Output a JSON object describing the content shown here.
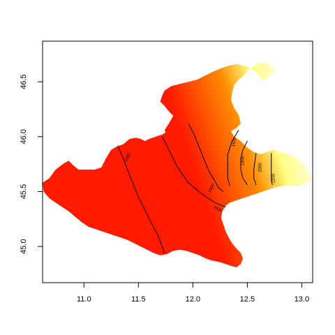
{
  "chart_data": {
    "type": "heatmap",
    "title": "",
    "xlabel": "",
    "ylabel": "",
    "xlim": [
      10.62,
      13.1
    ],
    "ylim": [
      44.67,
      46.87
    ],
    "x_ticks": [
      {
        "value": 11.0,
        "label": "11.0"
      },
      {
        "value": 11.5,
        "label": "11.5"
      },
      {
        "value": 12.0,
        "label": "12.0"
      },
      {
        "value": 12.5,
        "label": "12.5"
      },
      {
        "value": 13.0,
        "label": "13.0"
      }
    ],
    "y_ticks": [
      {
        "value": 45.0,
        "label": "45.0"
      },
      {
        "value": 45.5,
        "label": "45.5"
      },
      {
        "value": 46.0,
        "label": "46.0"
      },
      {
        "value": 46.5,
        "label": "46.5"
      }
    ],
    "color_scale": {
      "low": "#ff1a00",
      "mid": "#ff8c00",
      "high": "#ffff80",
      "top": "#ffffe0"
    },
    "region_outline": [
      [
        10.62,
        45.58
      ],
      [
        10.68,
        45.62
      ],
      [
        10.74,
        45.7
      ],
      [
        10.82,
        45.76
      ],
      [
        10.86,
        45.78
      ],
      [
        10.9,
        45.74
      ],
      [
        10.95,
        45.7
      ],
      [
        11.02,
        45.7
      ],
      [
        11.1,
        45.7
      ],
      [
        11.16,
        45.72
      ],
      [
        11.2,
        45.8
      ],
      [
        11.25,
        45.88
      ],
      [
        11.3,
        45.91
      ],
      [
        11.36,
        45.93
      ],
      [
        11.42,
        45.98
      ],
      [
        11.48,
        45.99
      ],
      [
        11.52,
        45.98
      ],
      [
        11.56,
        45.96
      ],
      [
        11.6,
        45.98
      ],
      [
        11.66,
        46.0
      ],
      [
        11.72,
        46.02
      ],
      [
        11.78,
        46.06
      ],
      [
        11.84,
        46.09
      ],
      [
        11.9,
        46.11
      ],
      [
        11.93,
        46.1
      ],
      [
        11.96,
        46.11
      ],
      [
        11.99,
        46.14
      ],
      [
        12.02,
        46.15
      ],
      [
        12.06,
        46.15
      ],
      [
        12.1,
        46.14
      ],
      [
        12.12,
        46.1
      ],
      [
        12.09,
        46.06
      ],
      [
        12.07,
        46.04
      ],
      [
        12.08,
        46.01
      ],
      [
        12.06,
        45.98
      ],
      [
        12.03,
        45.95
      ],
      [
        12.0,
        45.96
      ],
      [
        11.95,
        45.97
      ],
      [
        11.9,
        45.99
      ],
      [
        11.86,
        45.98
      ],
      [
        11.8,
        46.0
      ],
      [
        11.76,
        46.02
      ],
      [
        11.74,
        46.06
      ],
      [
        11.78,
        46.12
      ],
      [
        11.82,
        46.19
      ],
      [
        11.78,
        46.23
      ],
      [
        11.74,
        46.28
      ],
      [
        11.7,
        46.32
      ],
      [
        11.72,
        46.38
      ],
      [
        11.74,
        46.42
      ],
      [
        11.8,
        46.46
      ],
      [
        11.88,
        46.48
      ],
      [
        11.96,
        46.5
      ],
      [
        12.04,
        46.52
      ],
      [
        12.12,
        46.56
      ],
      [
        12.2,
        46.6
      ],
      [
        12.28,
        46.63
      ],
      [
        12.34,
        46.65
      ],
      [
        12.4,
        46.66
      ],
      [
        12.46,
        46.65
      ],
      [
        12.52,
        46.63
      ],
      [
        12.56,
        46.6
      ],
      [
        12.6,
        46.57
      ],
      [
        12.62,
        46.53
      ],
      [
        12.66,
        46.52
      ],
      [
        12.7,
        46.55
      ],
      [
        12.74,
        46.58
      ],
      [
        12.76,
        46.62
      ],
      [
        12.72,
        46.65
      ],
      [
        12.66,
        46.68
      ],
      [
        12.6,
        46.67
      ],
      [
        12.56,
        46.64
      ],
      [
        12.5,
        46.6
      ],
      [
        12.46,
        46.55
      ],
      [
        12.42,
        46.52
      ],
      [
        12.38,
        46.47
      ],
      [
        12.36,
        46.4
      ],
      [
        12.35,
        46.33
      ],
      [
        12.38,
        46.26
      ],
      [
        12.42,
        46.2
      ],
      [
        12.44,
        46.12
      ],
      [
        12.4,
        46.08
      ],
      [
        12.35,
        46.05
      ],
      [
        12.38,
        46.0
      ],
      [
        12.44,
        45.96
      ],
      [
        12.5,
        45.9
      ],
      [
        12.56,
        45.86
      ],
      [
        12.62,
        45.84
      ],
      [
        12.68,
        45.86
      ],
      [
        12.74,
        45.88
      ],
      [
        12.8,
        45.86
      ],
      [
        12.88,
        45.84
      ],
      [
        12.96,
        45.8
      ],
      [
        13.02,
        45.74
      ],
      [
        13.06,
        45.68
      ],
      [
        13.1,
        45.62
      ],
      [
        13.05,
        45.58
      ],
      [
        13.0,
        45.56
      ],
      [
        12.94,
        45.55
      ],
      [
        12.88,
        45.56
      ],
      [
        12.82,
        45.55
      ],
      [
        12.76,
        45.54
      ],
      [
        12.7,
        45.52
      ],
      [
        12.64,
        45.5
      ],
      [
        12.58,
        45.48
      ],
      [
        12.52,
        45.46
      ],
      [
        12.46,
        45.44
      ],
      [
        12.4,
        45.42
      ],
      [
        12.34,
        45.4
      ],
      [
        12.3,
        45.37
      ],
      [
        12.27,
        45.32
      ],
      [
        12.26,
        45.26
      ],
      [
        12.28,
        45.2
      ],
      [
        12.3,
        45.14
      ],
      [
        12.33,
        45.08
      ],
      [
        12.36,
        45.03
      ],
      [
        12.4,
        44.98
      ],
      [
        12.44,
        44.94
      ],
      [
        12.46,
        44.89
      ],
      [
        12.44,
        44.84
      ],
      [
        12.4,
        44.81
      ],
      [
        12.36,
        44.82
      ],
      [
        12.3,
        44.84
      ],
      [
        12.24,
        44.86
      ],
      [
        12.18,
        44.87
      ],
      [
        12.12,
        44.89
      ],
      [
        12.06,
        44.92
      ],
      [
        12.0,
        44.94
      ],
      [
        11.94,
        44.96
      ],
      [
        11.88,
        44.97
      ],
      [
        11.82,
        44.96
      ],
      [
        11.76,
        44.93
      ],
      [
        11.7,
        44.92
      ],
      [
        11.64,
        44.94
      ],
      [
        11.58,
        44.97
      ],
      [
        11.52,
        45.0
      ],
      [
        11.46,
        45.03
      ],
      [
        11.4,
        45.06
      ],
      [
        11.34,
        45.08
      ],
      [
        11.28,
        45.1
      ],
      [
        11.22,
        45.12
      ],
      [
        11.16,
        45.14
      ],
      [
        11.1,
        45.16
      ],
      [
        11.04,
        45.18
      ],
      [
        10.98,
        45.22
      ],
      [
        10.92,
        45.27
      ],
      [
        10.86,
        45.32
      ],
      [
        10.8,
        45.36
      ],
      [
        10.74,
        45.4
      ],
      [
        10.68,
        45.44
      ],
      [
        10.63,
        45.5
      ],
      [
        10.62,
        45.58
      ]
    ],
    "contours": [
      {
        "level": "1000",
        "points": [
          [
            11.31,
            45.92
          ],
          [
            11.36,
            45.8
          ],
          [
            11.42,
            45.65
          ],
          [
            11.5,
            45.45
          ],
          [
            11.6,
            45.25
          ],
          [
            11.68,
            45.1
          ],
          [
            11.74,
            44.94
          ]
        ]
      },
      {
        "level": "1500",
        "points": [
          [
            11.72,
            46.0
          ],
          [
            11.78,
            45.88
          ],
          [
            11.86,
            45.72
          ],
          [
            11.96,
            45.58
          ],
          [
            12.08,
            45.48
          ],
          [
            12.2,
            45.4
          ],
          [
            12.3,
            45.36
          ]
        ]
      },
      {
        "level": "1500",
        "points": [
          [
            11.96,
            46.12
          ],
          [
            12.02,
            46.0
          ],
          [
            12.06,
            45.9
          ],
          [
            12.1,
            45.8
          ],
          [
            12.15,
            45.68
          ],
          [
            12.2,
            45.6
          ],
          [
            12.24,
            45.53
          ],
          [
            12.28,
            45.5
          ]
        ]
      },
      {
        "level": "1500",
        "points": [
          [
            12.42,
            46.06
          ],
          [
            12.36,
            45.96
          ],
          [
            12.32,
            45.84
          ],
          [
            12.32,
            45.72
          ],
          [
            12.32,
            45.62
          ],
          [
            12.34,
            45.55
          ]
        ]
      },
      {
        "level": "1800",
        "points": [
          [
            12.5,
            45.96
          ],
          [
            12.46,
            45.88
          ],
          [
            12.44,
            45.8
          ],
          [
            12.44,
            45.7
          ],
          [
            12.46,
            45.62
          ],
          [
            12.5,
            45.56
          ]
        ]
      },
      {
        "level": "2000",
        "points": [
          [
            12.58,
            45.85
          ],
          [
            12.57,
            45.78
          ],
          [
            12.56,
            45.7
          ],
          [
            12.56,
            45.62
          ],
          [
            12.58,
            45.56
          ]
        ]
      },
      {
        "level": "2200",
        "points": [
          [
            12.72,
            45.85
          ],
          [
            12.72,
            45.76
          ],
          [
            12.72,
            45.68
          ],
          [
            12.72,
            45.6
          ],
          [
            12.73,
            45.56
          ]
        ]
      }
    ],
    "contour_labels": [
      {
        "text": "1000",
        "x": 11.4,
        "y": 45.81,
        "angle": -62
      },
      {
        "text": "1500",
        "x": 12.23,
        "y": 45.34,
        "angle": 30
      },
      {
        "text": "1500",
        "x": 12.17,
        "y": 45.53,
        "angle": -62
      },
      {
        "text": "1500",
        "x": 12.38,
        "y": 45.95,
        "angle": -80
      },
      {
        "text": "1800",
        "x": 12.46,
        "y": 45.78,
        "angle": -90
      },
      {
        "text": "2000",
        "x": 12.62,
        "y": 45.72,
        "angle": -90
      },
      {
        "text": "2200",
        "x": 12.74,
        "y": 45.62,
        "angle": -90
      }
    ]
  }
}
